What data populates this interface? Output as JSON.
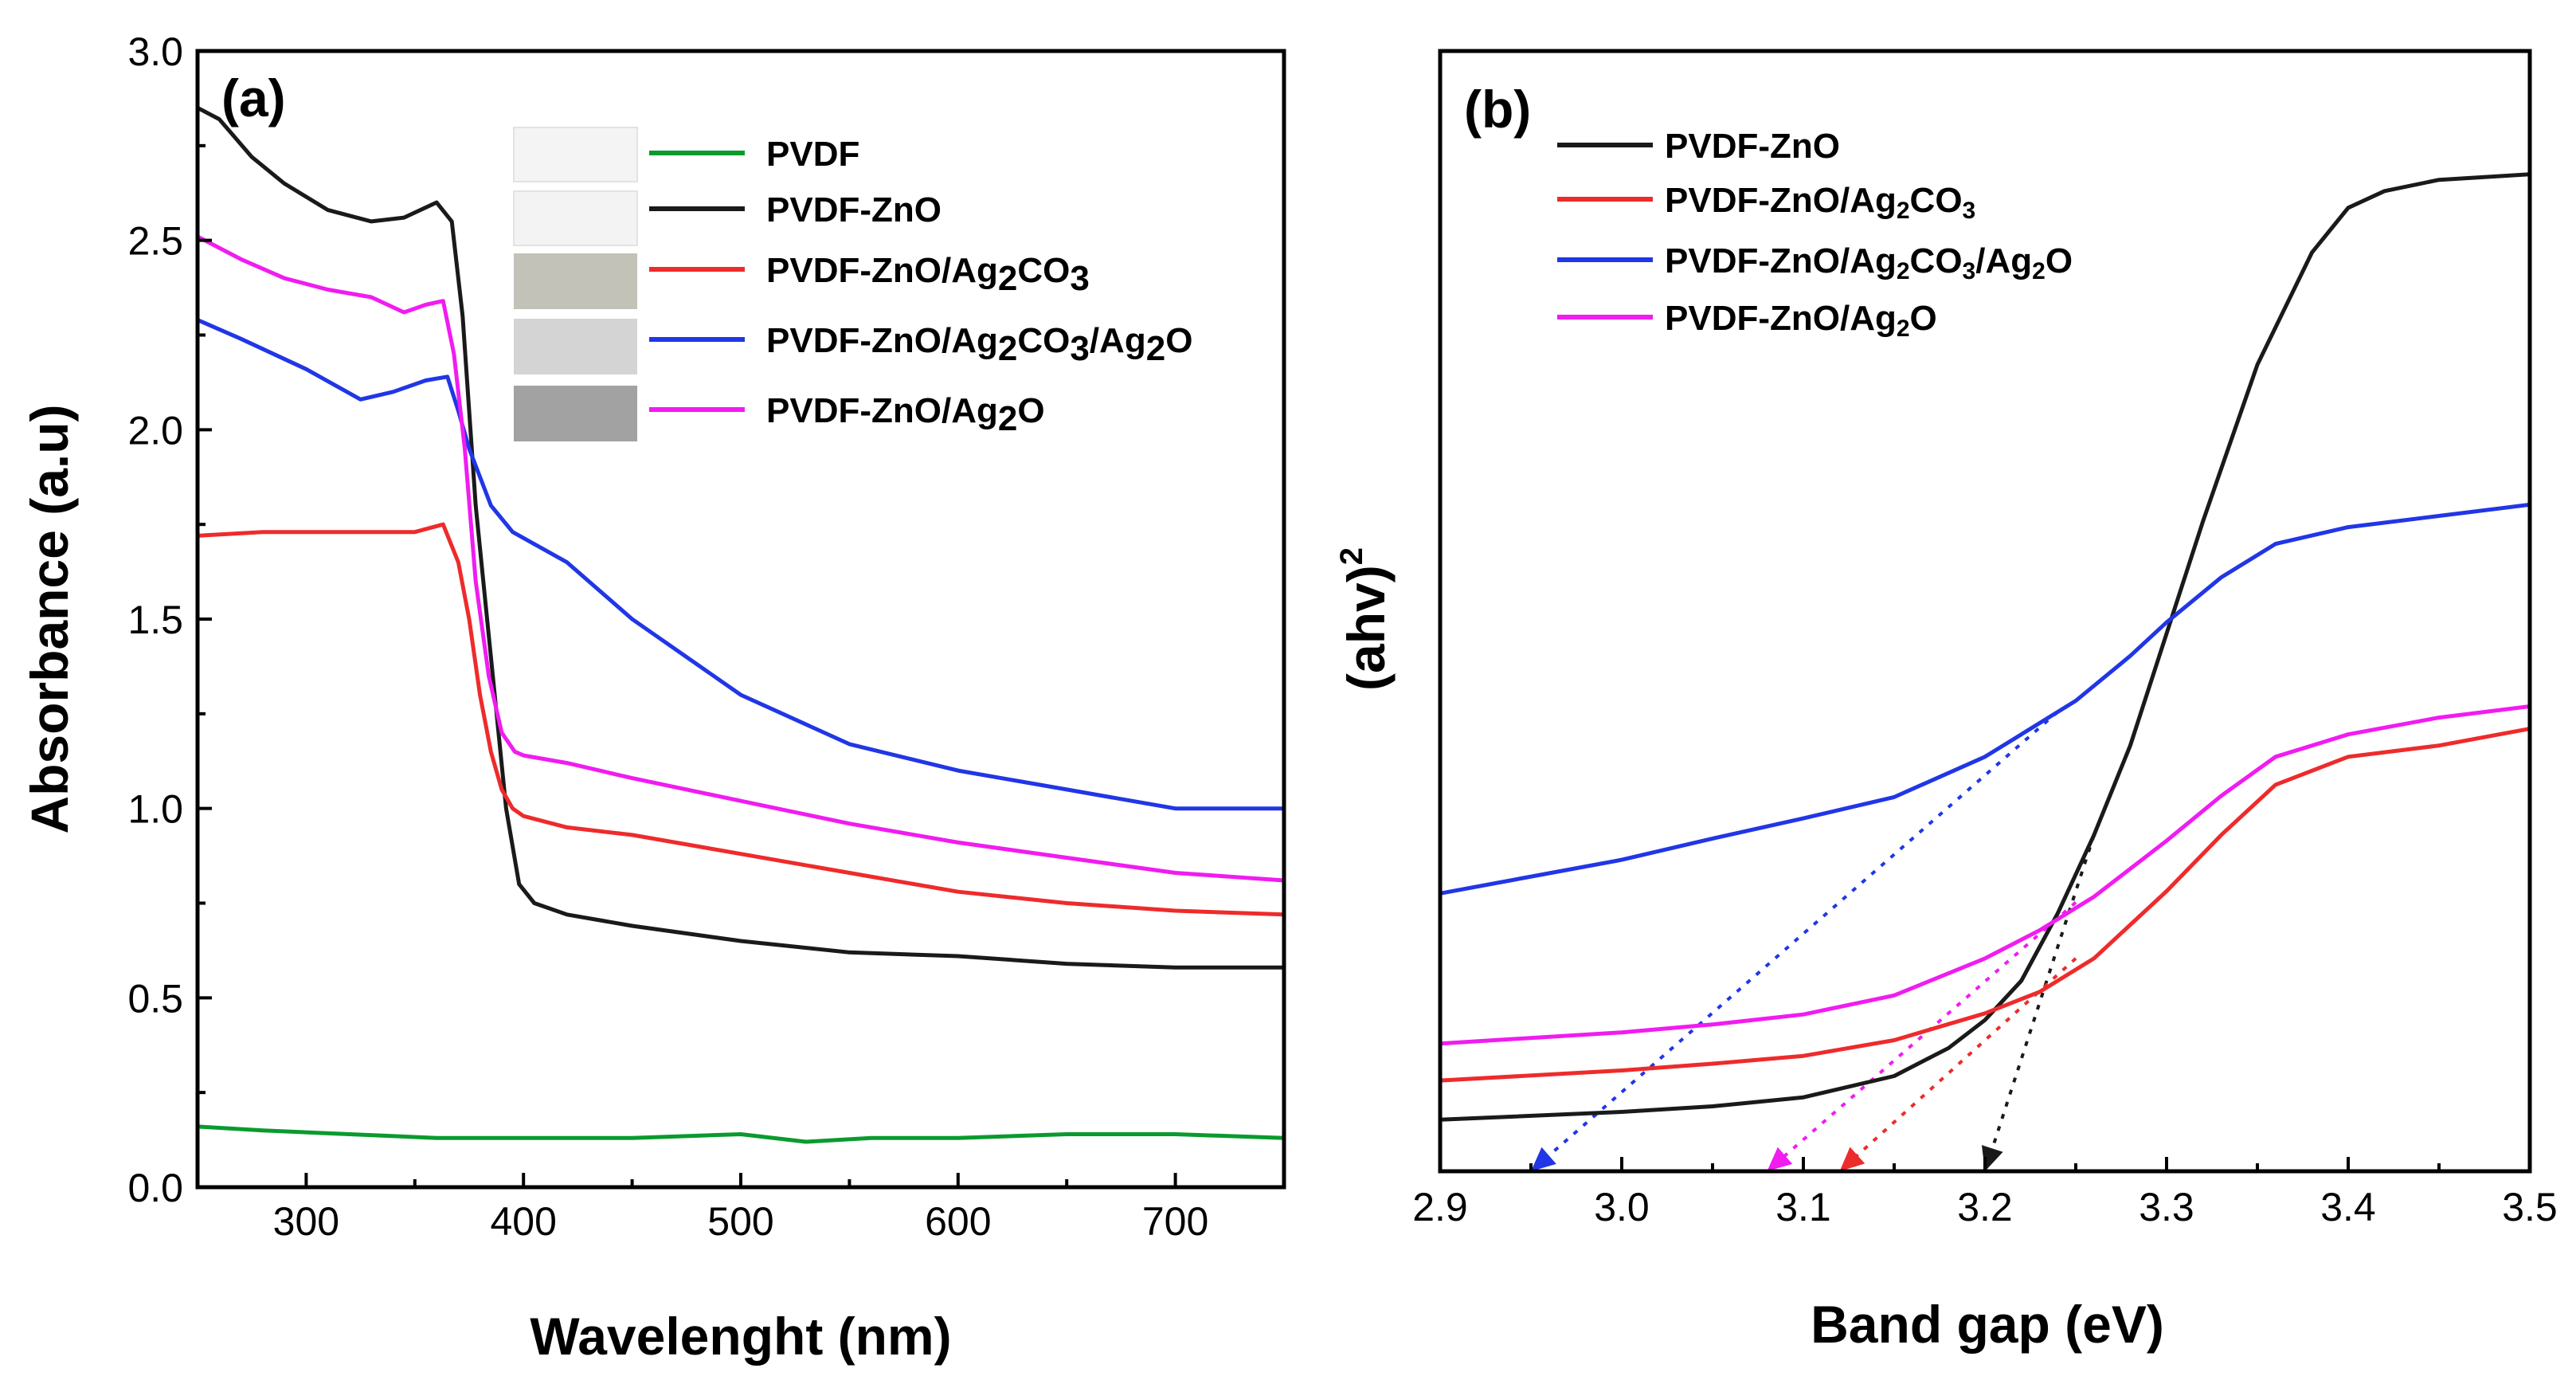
{
  "chart_data": [
    {
      "type": "line",
      "panel_label": "(a)",
      "xlabel": "Wavelenght (nm)",
      "ylabel": "Absorbance (a.u)",
      "xlim": [
        250,
        750
      ],
      "ylim": [
        0.0,
        3.0
      ],
      "xticks": [
        "300",
        "400",
        "500",
        "600",
        "700"
      ],
      "xtick_values": [
        300,
        400,
        500,
        600,
        700
      ],
      "yticks": [
        "0.0",
        "0.5",
        "1.0",
        "1.5",
        "2.0",
        "2.5",
        "3.0"
      ],
      "ytick_values": [
        0.0,
        0.5,
        1.0,
        1.5,
        2.0,
        2.5,
        3.0
      ],
      "grid": false,
      "legend_position": "top-right",
      "legend_swatches": [
        "#f4f4f4",
        "#f3f3f3",
        "#c2c2b8",
        "#d4d4d4",
        "#a2a2a2"
      ],
      "series": [
        {
          "name": "PVDF",
          "color": "#0a9a2e",
          "x": [
            250,
            280,
            320,
            360,
            400,
            450,
            500,
            530,
            560,
            600,
            650,
            700,
            750
          ],
          "y": [
            0.16,
            0.15,
            0.14,
            0.13,
            0.13,
            0.13,
            0.14,
            0.12,
            0.13,
            0.13,
            0.14,
            0.14,
            0.13
          ]
        },
        {
          "name": "PVDF-ZnO",
          "color": "#1a1a1a",
          "x": [
            250,
            260,
            275,
            290,
            310,
            330,
            345,
            360,
            367,
            372,
            378,
            385,
            392,
            398,
            405,
            420,
            450,
            500,
            550,
            600,
            650,
            700,
            750
          ],
          "y": [
            2.85,
            2.82,
            2.72,
            2.65,
            2.58,
            2.55,
            2.56,
            2.6,
            2.55,
            2.3,
            1.8,
            1.4,
            1.0,
            0.8,
            0.75,
            0.72,
            0.69,
            0.65,
            0.62,
            0.61,
            0.59,
            0.58,
            0.58
          ]
        },
        {
          "name": "PVDF-ZnO/Ag2CO3",
          "color": "#ee2b2b",
          "x": [
            250,
            280,
            320,
            350,
            363,
            370,
            375,
            380,
            385,
            390,
            395,
            400,
            420,
            450,
            500,
            550,
            600,
            650,
            700,
            750
          ],
          "y": [
            1.72,
            1.73,
            1.73,
            1.73,
            1.75,
            1.65,
            1.5,
            1.3,
            1.15,
            1.05,
            1.0,
            0.98,
            0.95,
            0.93,
            0.88,
            0.83,
            0.78,
            0.75,
            0.73,
            0.72
          ]
        },
        {
          "name": "PVDF-ZnO/Ag2CO3/Ag2O",
          "color": "#2136e6",
          "x": [
            250,
            270,
            300,
            325,
            340,
            355,
            365,
            370,
            375,
            385,
            395,
            420,
            450,
            500,
            550,
            600,
            650,
            700,
            750
          ],
          "y": [
            2.29,
            2.24,
            2.16,
            2.08,
            2.1,
            2.13,
            2.14,
            2.05,
            1.95,
            1.8,
            1.73,
            1.65,
            1.5,
            1.3,
            1.17,
            1.1,
            1.05,
            1.0,
            1.0
          ]
        },
        {
          "name": "PVDF-ZnO/Ag2O",
          "color": "#f01cf0",
          "x": [
            250,
            270,
            290,
            310,
            330,
            345,
            355,
            363,
            368,
            373,
            378,
            384,
            390,
            396,
            400,
            420,
            450,
            500,
            550,
            600,
            650,
            700,
            750
          ],
          "y": [
            2.51,
            2.45,
            2.4,
            2.37,
            2.35,
            2.31,
            2.33,
            2.34,
            2.2,
            1.95,
            1.6,
            1.35,
            1.2,
            1.15,
            1.14,
            1.12,
            1.08,
            1.02,
            0.96,
            0.91,
            0.87,
            0.83,
            0.81
          ]
        }
      ]
    },
    {
      "type": "line",
      "panel_label": "(b)",
      "xlabel": "Band gap (eV)",
      "ylabel": "(ahv)",
      "ylabel_superscript": "2",
      "xlim": [
        2.9,
        3.5
      ],
      "ylim": [
        0,
        1.0
      ],
      "xticks": [
        "2.9",
        "3.0",
        "3.1",
        "3.2",
        "3.3",
        "3.4",
        "3.5"
      ],
      "xtick_values": [
        2.9,
        3.0,
        3.1,
        3.2,
        3.3,
        3.4,
        3.5
      ],
      "y_ticks_shown": false,
      "grid": false,
      "legend_position": "top-left",
      "series": [
        {
          "name": "PVDF-ZnO",
          "color": "#1a1a1a",
          "x": [
            2.9,
            3.0,
            3.05,
            3.1,
            3.15,
            3.18,
            3.2,
            3.22,
            3.24,
            3.26,
            3.28,
            3.3,
            3.32,
            3.35,
            3.38,
            3.4,
            3.42,
            3.45,
            3.5
          ],
          "y": [
            0.046,
            0.053,
            0.058,
            0.066,
            0.085,
            0.11,
            0.135,
            0.17,
            0.23,
            0.3,
            0.38,
            0.48,
            0.58,
            0.72,
            0.82,
            0.86,
            0.875,
            0.885,
            0.89
          ]
        },
        {
          "name": "PVDF-ZnO/Ag2CO3",
          "color": "#ee2b2b",
          "x": [
            2.9,
            3.0,
            3.05,
            3.1,
            3.15,
            3.2,
            3.23,
            3.26,
            3.3,
            3.33,
            3.36,
            3.4,
            3.45,
            3.5
          ],
          "y": [
            0.081,
            0.09,
            0.096,
            0.103,
            0.117,
            0.141,
            0.16,
            0.19,
            0.25,
            0.3,
            0.345,
            0.37,
            0.38,
            0.395
          ]
        },
        {
          "name": "PVDF-ZnO/Ag2CO3/Ag2O",
          "color": "#2136e6",
          "x": [
            2.9,
            3.0,
            3.05,
            3.1,
            3.15,
            3.2,
            3.22,
            3.25,
            3.28,
            3.3,
            3.33,
            3.36,
            3.4,
            3.45,
            3.5
          ],
          "y": [
            0.248,
            0.278,
            0.297,
            0.315,
            0.334,
            0.37,
            0.39,
            0.42,
            0.46,
            0.49,
            0.53,
            0.56,
            0.575,
            0.585,
            0.595
          ]
        },
        {
          "name": "PVDF-ZnO/Ag2O",
          "color": "#f01cf0",
          "x": [
            2.9,
            3.0,
            3.05,
            3.1,
            3.15,
            3.2,
            3.23,
            3.26,
            3.3,
            3.33,
            3.36,
            3.4,
            3.45,
            3.5
          ],
          "y": [
            0.114,
            0.124,
            0.131,
            0.14,
            0.157,
            0.19,
            0.215,
            0.245,
            0.295,
            0.335,
            0.37,
            0.39,
            0.405,
            0.415
          ]
        }
      ],
      "extrapolation_lines": [
        {
          "series": "PVDF-ZnO",
          "color": "#1a1a1a",
          "from": [
            3.26,
            0.3
          ],
          "to": [
            3.2,
            0.0
          ]
        },
        {
          "series": "PVDF-ZnO/Ag2CO3",
          "color": "#ee2b2b",
          "from": [
            3.25,
            0.19
          ],
          "to": [
            3.12,
            0.0
          ]
        },
        {
          "series": "PVDF-ZnO/Ag2CO3/Ag2O",
          "color": "#2136e6",
          "from": [
            3.24,
            0.41
          ],
          "to": [
            2.95,
            0.0
          ]
        },
        {
          "series": "PVDF-ZnO/Ag2O",
          "color": "#f01cf0",
          "from": [
            3.25,
            0.24
          ],
          "to": [
            3.08,
            0.0
          ]
        }
      ]
    }
  ]
}
